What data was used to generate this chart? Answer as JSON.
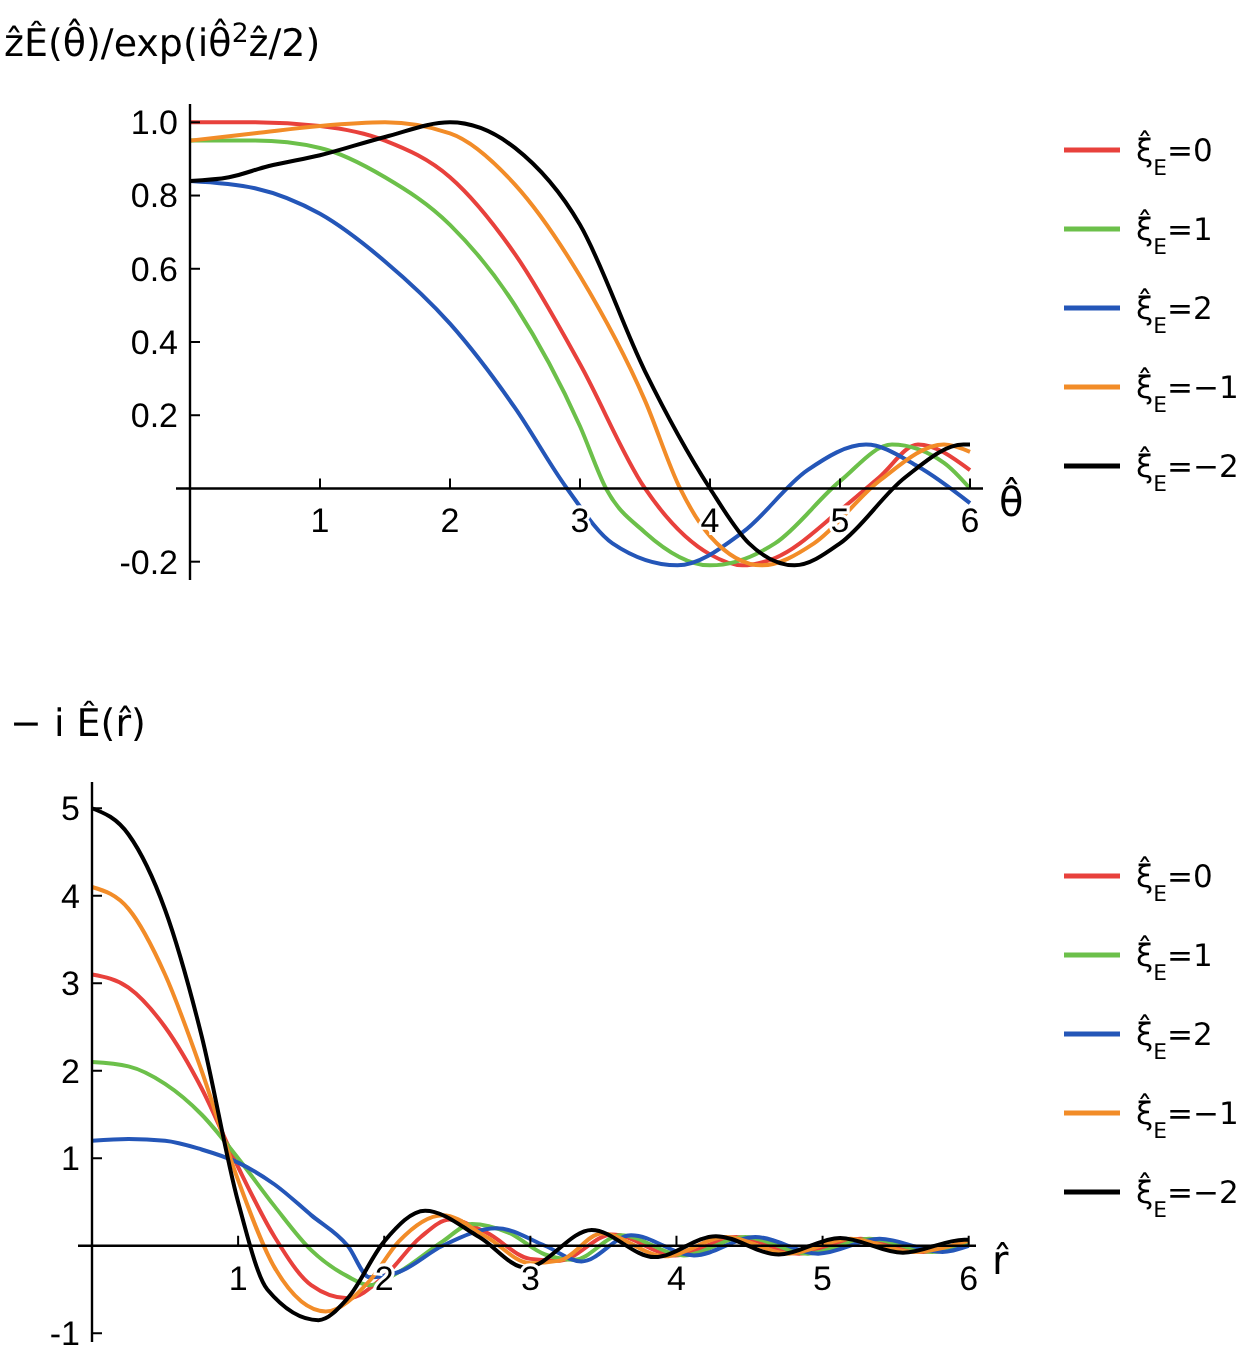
{
  "chart_data": [
    {
      "type": "line",
      "ylabel": "ẑÊ(θ̂)/exp(iθ̂$^{2}$ẑ/2)",
      "xlabel": "θ̂",
      "xlim": [
        0,
        6.1
      ],
      "ylim": [
        -0.25,
        1.05
      ],
      "xticks": [
        1,
        2,
        3,
        4,
        5,
        6
      ],
      "yticks": [
        -0.2,
        0.2,
        0.4,
        0.6,
        0.8,
        {
          "value": 1,
          "label": "1.0"
        }
      ],
      "legend": "right",
      "series": [
        {
          "name": "ξ̂$_{E}$=0",
          "color": "#e8413c",
          "x": [
            0,
            0.5,
            1,
            1.5,
            2,
            2.5,
            3,
            3.5,
            4,
            4.25,
            4.5,
            5,
            5.3,
            5.6,
            6
          ],
          "values": [
            1.0,
            1.0,
            0.99,
            0.95,
            0.85,
            0.64,
            0.34,
            0.0,
            -0.18,
            -0.21,
            -0.19,
            -0.06,
            0.03,
            0.12,
            0.05
          ]
        },
        {
          "name": "ξ̂$_{E}$=1",
          "color": "#6cc04a",
          "x": [
            0,
            0.5,
            1,
            1.5,
            2,
            2.5,
            3,
            3.2,
            3.5,
            4,
            4.5,
            5,
            5.4,
            5.8,
            6
          ],
          "values": [
            0.95,
            0.95,
            0.93,
            0.85,
            0.72,
            0.5,
            0.17,
            0.0,
            -0.12,
            -0.21,
            -0.15,
            0.02,
            0.12,
            0.07,
            0.0
          ]
        },
        {
          "name": "ξ̂$_{E}$=2",
          "color": "#2456b8",
          "x": [
            0,
            0.5,
            1,
            1.5,
            2,
            2.5,
            2.9,
            3.25,
            3.75,
            4.25,
            4.75,
            5.2,
            5.6,
            6
          ],
          "values": [
            0.84,
            0.82,
            0.75,
            0.62,
            0.45,
            0.22,
            0.0,
            -0.15,
            -0.21,
            -0.12,
            0.05,
            0.12,
            0.06,
            -0.04
          ]
        },
        {
          "name": "ξ̂$_{E}$=−1",
          "color": "#f28c28",
          "x": [
            0,
            0.5,
            1,
            1.5,
            2,
            2.5,
            3,
            3.5,
            3.77,
            4,
            4.4,
            4.8,
            5.3,
            5.8,
            6
          ],
          "values": [
            0.95,
            0.97,
            0.99,
            1.0,
            0.97,
            0.83,
            0.58,
            0.24,
            0.0,
            -0.13,
            -0.21,
            -0.15,
            0.02,
            0.12,
            0.1
          ]
        },
        {
          "name": "ξ̂$_{E}$=−2",
          "color": "#000000",
          "x": [
            0,
            0.3,
            0.6,
            1,
            1.5,
            2,
            2.5,
            3,
            3.5,
            4,
            4.3,
            4.65,
            5,
            5.5,
            5.95,
            6
          ],
          "values": [
            0.84,
            0.85,
            0.88,
            0.91,
            0.96,
            1.0,
            0.93,
            0.72,
            0.32,
            0.0,
            -0.15,
            -0.21,
            -0.15,
            0.03,
            0.12,
            0.12
          ]
        }
      ]
    },
    {
      "type": "line",
      "ylabel": "− i Ê(r̂)",
      "xlabel": "r̂",
      "xlim": [
        0,
        6.05
      ],
      "ylim": [
        -1.1,
        5.3
      ],
      "xticks": [
        1,
        2,
        3,
        4,
        5,
        6
      ],
      "yticks": [
        -1,
        1,
        2,
        3,
        4,
        5
      ],
      "legend": "right",
      "series": [
        {
          "name": "ξ̂$_{E}$=0",
          "color": "#e8413c",
          "x": [
            0,
            0.25,
            0.5,
            0.75,
            1,
            1.25,
            1.5,
            1.75,
            2,
            2.25,
            2.45,
            2.7,
            3.0,
            3.2,
            3.56,
            3.99,
            4.41,
            4.84,
            5.26,
            5.69,
            6
          ],
          "values": [
            3.1,
            2.95,
            2.5,
            1.8,
            0.9,
            0.1,
            -0.45,
            -0.6,
            -0.35,
            0.1,
            0.3,
            0.15,
            -0.15,
            -0.17,
            0.13,
            -0.11,
            0.1,
            -0.09,
            0.08,
            -0.07,
            0.04
          ]
        },
        {
          "name": "ξ̂$_{E}$=1",
          "color": "#6cc04a",
          "x": [
            0,
            0.25,
            0.5,
            0.75,
            1,
            1.25,
            1.5,
            1.75,
            1.9,
            2.1,
            2.4,
            2.6,
            2.85,
            3.1,
            3.3,
            3.62,
            4.05,
            4.47,
            4.9,
            5.32,
            5.75,
            6
          ],
          "values": [
            2.1,
            2.05,
            1.85,
            1.5,
            1.0,
            0.45,
            -0.05,
            -0.35,
            -0.45,
            -0.3,
            0.05,
            0.25,
            0.15,
            -0.1,
            -0.16,
            0.12,
            -0.11,
            0.1,
            -0.09,
            0.08,
            -0.07,
            0.02
          ]
        },
        {
          "name": "ξ̂$_{E}$=2",
          "color": "#2456b8",
          "x": [
            0,
            0.25,
            0.5,
            0.75,
            1,
            1.25,
            1.5,
            1.75,
            1.9,
            2.1,
            2.4,
            2.77,
            3.1,
            3.35,
            3.69,
            4.12,
            4.54,
            4.97,
            5.39,
            5.82,
            6
          ],
          "values": [
            1.2,
            1.22,
            1.2,
            1.1,
            0.95,
            0.7,
            0.35,
            0.0,
            -0.36,
            -0.3,
            0.0,
            0.2,
            0.0,
            -0.18,
            0.12,
            -0.11,
            0.1,
            -0.09,
            0.08,
            -0.07,
            0.0
          ]
        },
        {
          "name": "ξ̂$_{E}$=−1",
          "color": "#f28c28",
          "x": [
            0,
            0.25,
            0.5,
            0.75,
            1,
            1.25,
            1.6,
            1.9,
            2.1,
            2.4,
            2.7,
            3.0,
            3.2,
            3.49,
            3.92,
            4.34,
            4.77,
            5.19,
            5.62,
            6
          ],
          "values": [
            4.1,
            3.85,
            3.1,
            2.0,
            0.75,
            -0.25,
            -0.75,
            -0.4,
            0.05,
            0.35,
            0.1,
            -0.2,
            -0.17,
            0.14,
            -0.12,
            0.1,
            -0.09,
            0.08,
            -0.07,
            0.06
          ]
        },
        {
          "name": "ξ̂$_{E}$=−2",
          "color": "#000000",
          "x": [
            0,
            0.25,
            0.5,
            0.75,
            1,
            1.2,
            1.55,
            1.75,
            2.0,
            2.28,
            2.65,
            2.97,
            3.42,
            3.85,
            4.27,
            4.7,
            5.12,
            5.55,
            5.97,
            6
          ],
          "values": [
            5.0,
            4.7,
            3.84,
            2.4,
            0.5,
            -0.5,
            -0.85,
            -0.6,
            0.05,
            0.4,
            0.1,
            -0.25,
            0.18,
            -0.13,
            0.11,
            -0.1,
            0.09,
            -0.08,
            0.07,
            0.07
          ]
        }
      ]
    }
  ]
}
